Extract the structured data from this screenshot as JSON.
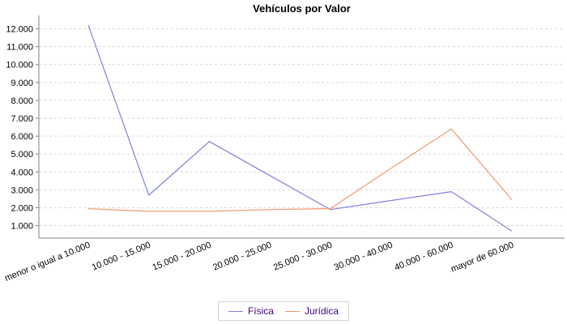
{
  "chart_data": {
    "type": "line",
    "title": "Vehículos por Valor",
    "categories": [
      "menor o igual a 10.000",
      "10.000 - 15.000",
      "15.000 - 20.000",
      "20.000 - 25.000",
      "25.000 - 30.000",
      "30.000 - 40.000",
      "40.000 - 60.000",
      "mayor de 60.000"
    ],
    "series": [
      {
        "name": "Física",
        "color": "#8181e0",
        "values": [
          12200,
          2700,
          5700,
          3800,
          1900,
          2400,
          2900,
          700
        ]
      },
      {
        "name": "Jurídica",
        "color": "#f1996b",
        "values": [
          1950,
          1800,
          1800,
          1900,
          1950,
          4200,
          6400,
          2450
        ]
      }
    ],
    "xlabel": "",
    "ylabel": "",
    "ylim": [
      300,
      12750
    ],
    "yticks": [
      1000,
      2000,
      3000,
      4000,
      5000,
      6000,
      7000,
      8000,
      9000,
      10000,
      11000,
      12000
    ],
    "ytick_labels": [
      "1.000",
      "2.000",
      "3.000",
      "4.000",
      "5.000",
      "6.000",
      "7.000",
      "8.000",
      "9.000",
      "10.000",
      "11.000",
      "12.000"
    ],
    "grid": "horizontal-dashed",
    "legend_position": "bottom-center",
    "axis_color": "#808080",
    "grid_color": "#d9d9d9",
    "tick_label_color": "#000000",
    "title_color": "#000000",
    "legend_text_color": "#440088",
    "legend_border_color": "#d4d4d4"
  }
}
